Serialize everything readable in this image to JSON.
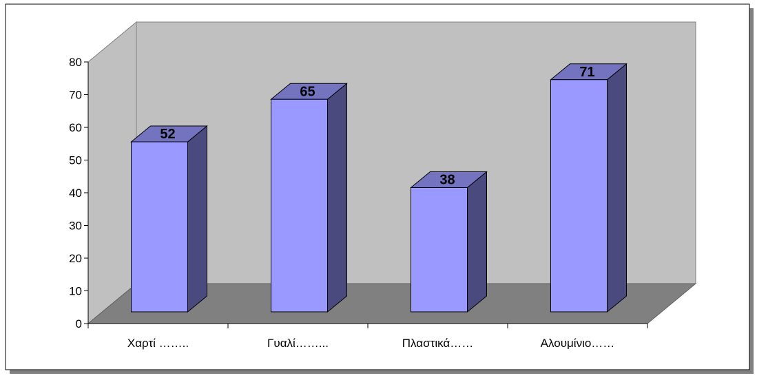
{
  "chart_data": {
    "type": "bar",
    "style": "3d-column",
    "categories": [
      "Χαρτί ……..",
      "Γυαλί……...",
      "Πλαστικά……",
      "Αλουμίνιο……"
    ],
    "values": [
      52,
      65,
      38,
      71
    ],
    "data_labels": [
      "52",
      "65",
      "38",
      "71"
    ],
    "y_ticks": [
      "0",
      "10",
      "20",
      "30",
      "40",
      "50",
      "60",
      "70",
      "80"
    ],
    "ylim": [
      0,
      80
    ],
    "grid": false,
    "legend": "none",
    "title": "",
    "xlabel": "",
    "ylabel": "",
    "colors": {
      "bar_front": "#9999ff",
      "bar_side": "#4b4a7e",
      "bar_top": "#7373bf",
      "back_wall": "#c0c0c0",
      "floor": "#808080",
      "frame_shadow": "#808080"
    }
  }
}
